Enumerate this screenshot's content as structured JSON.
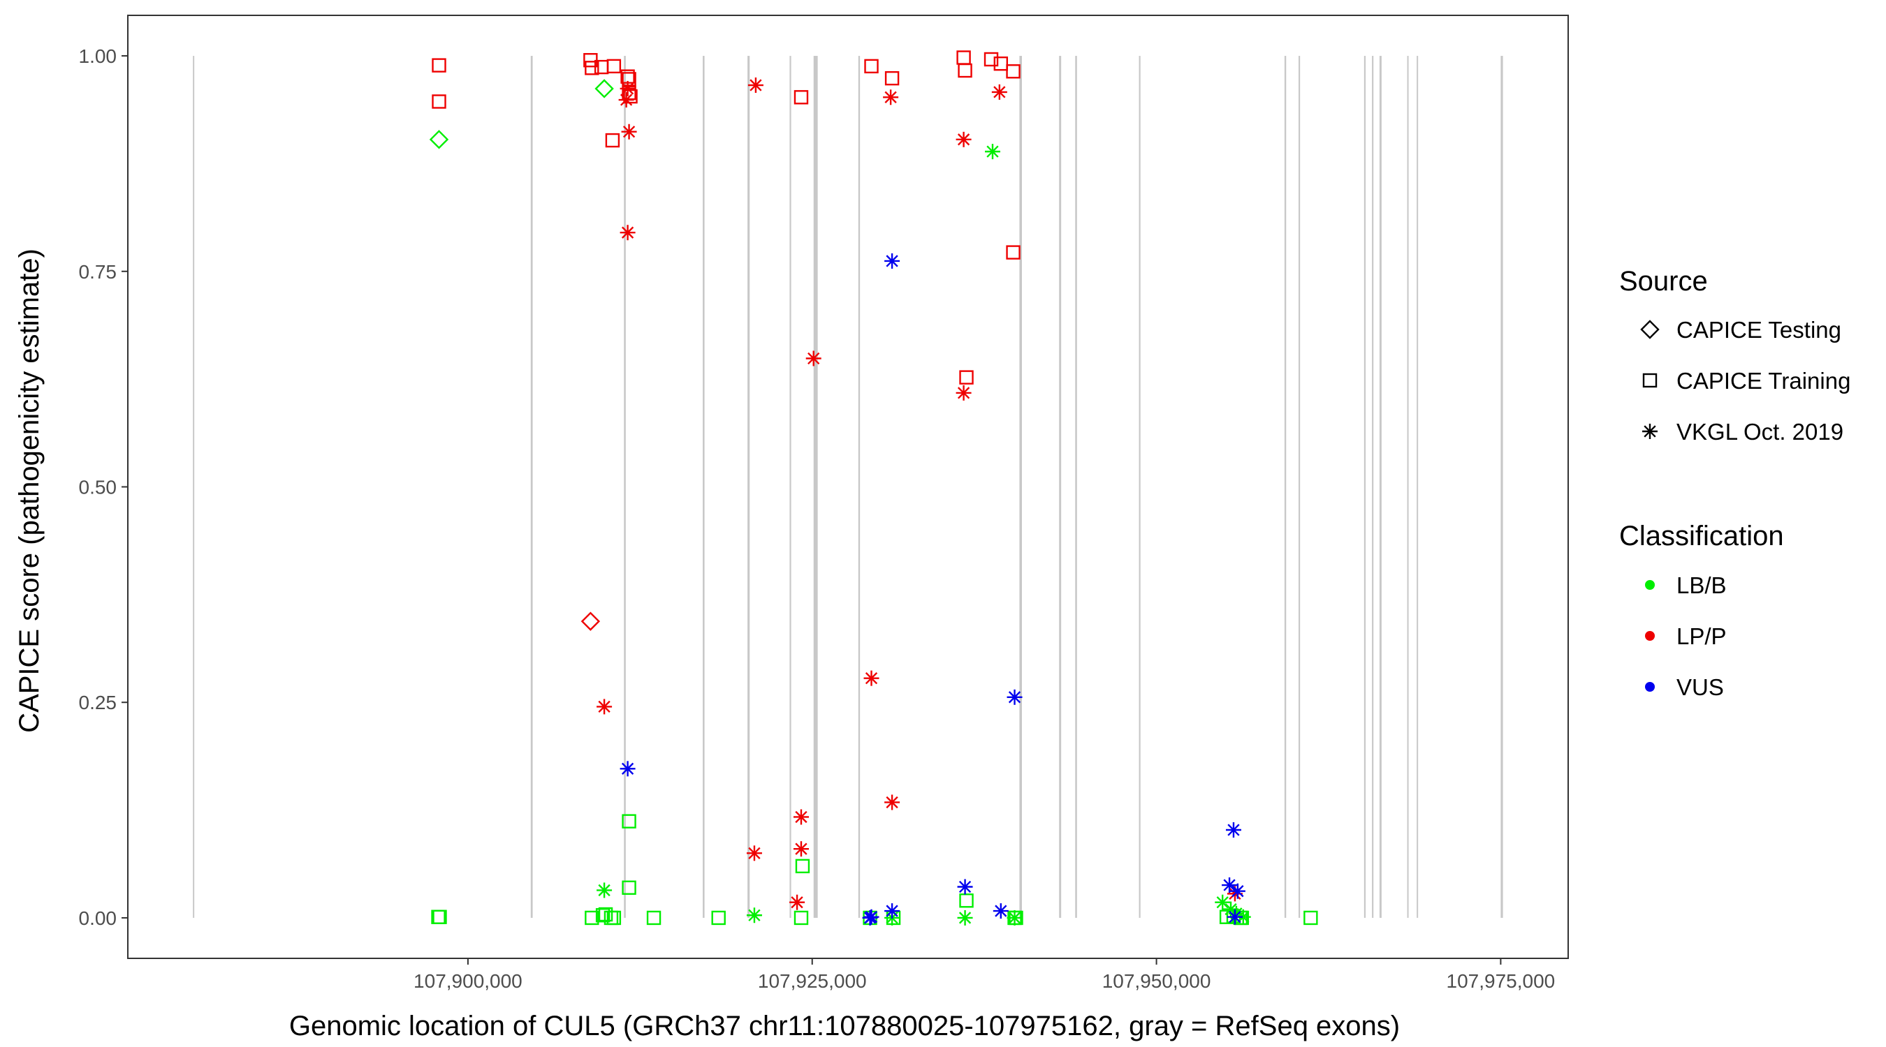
{
  "chart_data": {
    "type": "scatter",
    "title": "",
    "xlabel": "Genomic location of CUL5 (GRCh37 chr11:107880025-107975162, gray = RefSeq exons)",
    "ylabel": "CAPICE score (pathogenicity estimate)",
    "xlim": [
      107875300,
      107979900
    ],
    "ylim": [
      -0.047,
      1.047
    ],
    "x_ticks": [
      107900000,
      107925000,
      107950000,
      107975000
    ],
    "x_tick_labels": [
      "107,900,000",
      "107,925,000",
      "107,950,000",
      "107,975,000"
    ],
    "y_ticks": [
      0,
      0.25,
      0.5,
      0.75,
      1
    ],
    "y_tick_labels": [
      "0.00",
      "0.25",
      "0.50",
      "0.75",
      "1.00"
    ],
    "grid": false,
    "legend_position": "right",
    "exons": [
      {
        "start": 107880025,
        "end": 107880120
      },
      {
        "start": 107904560,
        "end": 107904700
      },
      {
        "start": 107911330,
        "end": 107911460
      },
      {
        "start": 107917050,
        "end": 107917180
      },
      {
        "start": 107920300,
        "end": 107920460
      },
      {
        "start": 107923360,
        "end": 107923470
      },
      {
        "start": 107925100,
        "end": 107925400
      },
      {
        "start": 107928350,
        "end": 107928470
      },
      {
        "start": 107940050,
        "end": 107940230
      },
      {
        "start": 107942930,
        "end": 107943080
      },
      {
        "start": 107944100,
        "end": 107944230
      },
      {
        "start": 107948730,
        "end": 107948840
      },
      {
        "start": 107959300,
        "end": 107959420
      },
      {
        "start": 107960320,
        "end": 107960430
      },
      {
        "start": 107965080,
        "end": 107965190
      },
      {
        "start": 107965650,
        "end": 107965760
      },
      {
        "start": 107966200,
        "end": 107966350
      },
      {
        "start": 107968210,
        "end": 107968310
      },
      {
        "start": 107968900,
        "end": 107969000
      },
      {
        "start": 107975000,
        "end": 107975162
      }
    ],
    "legends": [
      {
        "title": "Source",
        "items": [
          {
            "label": "CAPICE Testing",
            "shape": "diamond"
          },
          {
            "label": "CAPICE Training",
            "shape": "square"
          },
          {
            "label": "VKGL Oct. 2019",
            "shape": "star"
          }
        ]
      },
      {
        "title": "Classification",
        "items": [
          {
            "label": "LB/B",
            "color": "#00ee00"
          },
          {
            "label": "LP/P",
            "color": "#ee0000"
          },
          {
            "label": "VUS",
            "color": "#0000ee"
          }
        ]
      }
    ],
    "colors": {
      "LB/B": "#00ee00",
      "LP/P": "#ee0000",
      "VUS": "#0000ee",
      "exon": "#c8c8c8"
    },
    "series": [
      {
        "source": "CAPICE Testing",
        "class": "LB/B",
        "points": [
          [
            107897900,
            0.903
          ],
          [
            107909900,
            0.962
          ]
        ]
      },
      {
        "source": "CAPICE Testing",
        "class": "LP/P",
        "points": [
          [
            107908900,
            0.344
          ]
        ]
      },
      {
        "source": "CAPICE Training",
        "class": "LB/B",
        "points": [
          [
            107897850,
            0.001
          ],
          [
            107897950,
            0.001
          ],
          [
            107909000,
            0.0
          ],
          [
            107909800,
            0.003
          ],
          [
            107910000,
            0.004
          ],
          [
            107910400,
            0.0
          ],
          [
            107910600,
            0.0
          ],
          [
            107911700,
            0.112
          ],
          [
            107911700,
            0.035
          ],
          [
            107913500,
            0.0
          ],
          [
            107918200,
            0.0
          ],
          [
            107924200,
            0.0
          ],
          [
            107924300,
            0.06
          ],
          [
            107929200,
            0.0
          ],
          [
            107930900,
            0.0
          ],
          [
            107936200,
            0.02
          ],
          [
            107939700,
            0.0
          ],
          [
            107939800,
            0.0
          ],
          [
            107955100,
            0.001
          ],
          [
            107955600,
            0.002
          ],
          [
            107956100,
            0.0
          ],
          [
            107956200,
            0.0
          ],
          [
            107961200,
            0.0
          ]
        ]
      },
      {
        "source": "CAPICE Training",
        "class": "LP/P",
        "points": [
          [
            107897900,
            0.989
          ],
          [
            107897900,
            0.947
          ],
          [
            107908900,
            0.995
          ],
          [
            107909000,
            0.986
          ],
          [
            107909700,
            0.987
          ],
          [
            107910600,
            0.988
          ],
          [
            107910500,
            0.902
          ],
          [
            107911600,
            0.976
          ],
          [
            107911700,
            0.973
          ],
          [
            107911700,
            0.957
          ],
          [
            107911800,
            0.953
          ],
          [
            107929300,
            0.988
          ],
          [
            107930800,
            0.974
          ],
          [
            107924200,
            0.952
          ],
          [
            107936000,
            0.998
          ],
          [
            107936100,
            0.983
          ],
          [
            107938000,
            0.996
          ],
          [
            107938700,
            0.991
          ],
          [
            107939600,
            0.982
          ],
          [
            107939600,
            0.772
          ],
          [
            107936200,
            0.627
          ]
        ]
      },
      {
        "source": "VKGL Oct. 2019",
        "class": "LB/B",
        "points": [
          [
            107909900,
            0.032
          ],
          [
            107920800,
            0.003
          ],
          [
            107930800,
            0.0
          ],
          [
            107936100,
            0.0
          ],
          [
            107938100,
            0.889
          ],
          [
            107939700,
            0.0
          ],
          [
            107954800,
            0.018
          ],
          [
            107955400,
            0.01
          ],
          [
            107955800,
            0.005
          ],
          [
            107956300,
            0.001
          ]
        ]
      },
      {
        "source": "VKGL Oct. 2019",
        "class": "LP/P",
        "points": [
          [
            107920900,
            0.966
          ],
          [
            107930700,
            0.952
          ],
          [
            107936000,
            0.903
          ],
          [
            107938600,
            0.958
          ],
          [
            107911600,
            0.962
          ],
          [
            107911500,
            0.949
          ],
          [
            107911700,
            0.912
          ],
          [
            107911600,
            0.795
          ],
          [
            107925100,
            0.649
          ],
          [
            107936000,
            0.609
          ],
          [
            107909900,
            0.245
          ],
          [
            107929300,
            0.278
          ],
          [
            107930800,
            0.134
          ],
          [
            107920800,
            0.075
          ],
          [
            107924200,
            0.117
          ],
          [
            107924200,
            0.08
          ],
          [
            107923900,
            0.018
          ],
          [
            107955700,
            0.028
          ]
        ]
      },
      {
        "source": "VKGL Oct. 2019",
        "class": "VUS",
        "points": [
          [
            107911600,
            0.173
          ],
          [
            107930800,
            0.762
          ],
          [
            107939700,
            0.256
          ],
          [
            107929200,
            0.0
          ],
          [
            107929300,
            0.001
          ],
          [
            107930800,
            0.008
          ],
          [
            107936100,
            0.036
          ],
          [
            107938700,
            0.008
          ],
          [
            107955300,
            0.038
          ],
          [
            107955600,
            0.102
          ],
          [
            107955900,
            0.031
          ],
          [
            107955700,
            0.001
          ]
        ]
      }
    ]
  }
}
